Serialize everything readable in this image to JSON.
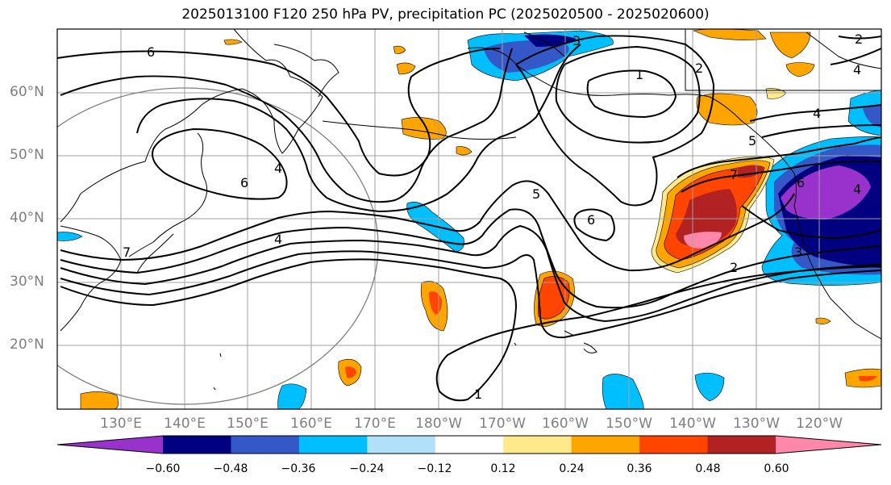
{
  "title": "2025013100 F120 250 hPa PV, precipitation PC (2025020500 - 2025020600)",
  "lat_labels": [
    "60°N",
    "50°N",
    "40°N",
    "30°N",
    "20°N"
  ],
  "lon_labels": [
    "130°E",
    "140°E",
    "150°E",
    "160°E",
    "170°E",
    "180°W",
    "170°W",
    "160°W",
    "150°W",
    "140°W",
    "130°W",
    "120°W"
  ],
  "contour_labels": [
    "6",
    "1",
    "2",
    "4",
    "7",
    "6",
    "4",
    "4",
    "6",
    "5",
    "6",
    "5",
    "3",
    "4",
    "4",
    "2",
    "3",
    "2",
    "1",
    "7"
  ],
  "colorbar": {
    "ticks": [
      "−0.60",
      "−0.48",
      "−0.36",
      "−0.24",
      "−0.12",
      "0.12",
      "0.24",
      "0.36",
      "0.48",
      "0.60"
    ],
    "colors": [
      "#9932cc",
      "#000080",
      "#3558c8",
      "#00bfff",
      "#b0e0fa",
      "#ffffff",
      "#ffe98a",
      "#ffa500",
      "#ff4500",
      "#b22222",
      "#ff88aa"
    ]
  }
}
